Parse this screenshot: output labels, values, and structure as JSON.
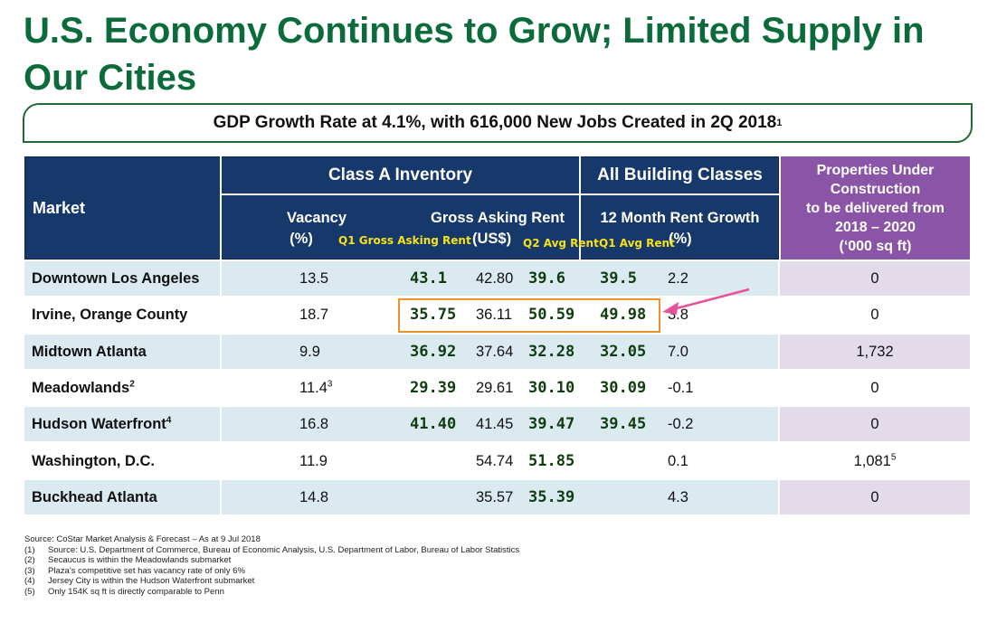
{
  "title": "U.S. Economy Continues to Grow; Limited Supply in Our Cities",
  "banner": {
    "text": "GDP Growth Rate at 4.1%, with 616,000 New Jobs Created in 2Q 2018",
    "sup": "1"
  },
  "header": {
    "market": "Market",
    "class_a": "Class A Inventory",
    "all_classes": "All Building Classes",
    "vacancy_1": "Vacancy",
    "vacancy_2": "(%)",
    "gross_1": "Gross Asking Rent",
    "gross_2": "(US$)",
    "growth_1": "12 Month Rent Growth",
    "growth_2": "(%)",
    "construction_1": "Properties Under",
    "construction_2": "Construction",
    "construction_3": "to be delivered from",
    "construction_4": "2018 – 2020",
    "construction_5": "(‘000 sq ft)"
  },
  "annotation_labels": {
    "q1_gross": "Q1 Gross Asking Rent",
    "q2_avg": "Q2 Avg Rent",
    "q1_avg": "Q1 Avg Rent"
  },
  "rows": [
    {
      "market": "Downtown Los Angeles",
      "market_sup": "",
      "vacancy": "13.5",
      "vacancy_sup": "",
      "q1_gross": "43.1",
      "rent": "42.80",
      "q2_avg": "39.6",
      "q1_avg": "39.5",
      "growth": "2.2",
      "construction": "0",
      "construction_sup": ""
    },
    {
      "market": "Irvine, Orange County",
      "market_sup": "",
      "vacancy": "18.7",
      "vacancy_sup": "",
      "q1_gross": "35.75",
      "rent": "36.11",
      "q2_avg": "50.59",
      "q1_avg": "49.98",
      "growth": "3.8",
      "construction": "0",
      "construction_sup": ""
    },
    {
      "market": "Midtown Atlanta",
      "market_sup": "",
      "vacancy": "9.9",
      "vacancy_sup": "",
      "q1_gross": "36.92",
      "rent": "37.64",
      "q2_avg": "32.28",
      "q1_avg": "32.05",
      "growth": "7.0",
      "construction": "1,732",
      "construction_sup": ""
    },
    {
      "market": "Meadowlands",
      "market_sup": "2",
      "vacancy": "11.4",
      "vacancy_sup": "3",
      "q1_gross": "29.39",
      "rent": "29.61",
      "q2_avg": "30.10",
      "q1_avg": "30.09",
      "growth": "-0.1",
      "construction": "0",
      "construction_sup": ""
    },
    {
      "market": "Hudson Waterfront",
      "market_sup": "4",
      "vacancy": "16.8",
      "vacancy_sup": "",
      "q1_gross": "41.40",
      "rent": "41.45",
      "q2_avg": "39.47",
      "q1_avg": "39.45",
      "growth": "-0.2",
      "construction": "0",
      "construction_sup": ""
    },
    {
      "market": "Washington, D.C.",
      "market_sup": "",
      "vacancy": "11.9",
      "vacancy_sup": "",
      "q1_gross": "",
      "rent": "54.74",
      "q2_avg": "51.85",
      "q1_avg": "",
      "growth": "0.1",
      "construction": "1,081",
      "construction_sup": "5"
    },
    {
      "market": "Buckhead Atlanta",
      "market_sup": "",
      "vacancy": "14.8",
      "vacancy_sup": "",
      "q1_gross": "",
      "rent": "35.57",
      "q2_avg": "35.39",
      "q1_avg": "",
      "growth": "4.3",
      "construction": "0",
      "construction_sup": ""
    }
  ],
  "footnotes": {
    "source": "Source: CoStar Market Analysis & Forecast – As at 9 Jul 2018",
    "items": [
      {
        "n": "(1)",
        "text": "Source: U.S. Department of Commerce, Bureau of Economic Analysis, U.S. Department of Labor, Bureau of Labor Statistics"
      },
      {
        "n": "(2)",
        "text": "Secaucus is within the Meadowlands submarket"
      },
      {
        "n": "(3)",
        "text": "Plaza’s competitive set has vacancy rate of only 6%"
      },
      {
        "n": "(4)",
        "text": "Jersey City is within the Hudson Waterfront submarket"
      },
      {
        "n": "(5)",
        "text": "Only 154K sq ft is directly comparable to Penn"
      }
    ]
  },
  "colors": {
    "title_green": "#0b6b3a",
    "header_navy": "#16386b",
    "header_purple": "#8a55a6",
    "row_blue": "#dbe9f1",
    "row_lavender": "#e3dbe9",
    "highlight_orange": "#f0922b",
    "arrow_pink": "#e8529a",
    "annotation_yellow": "#f6e11a"
  }
}
